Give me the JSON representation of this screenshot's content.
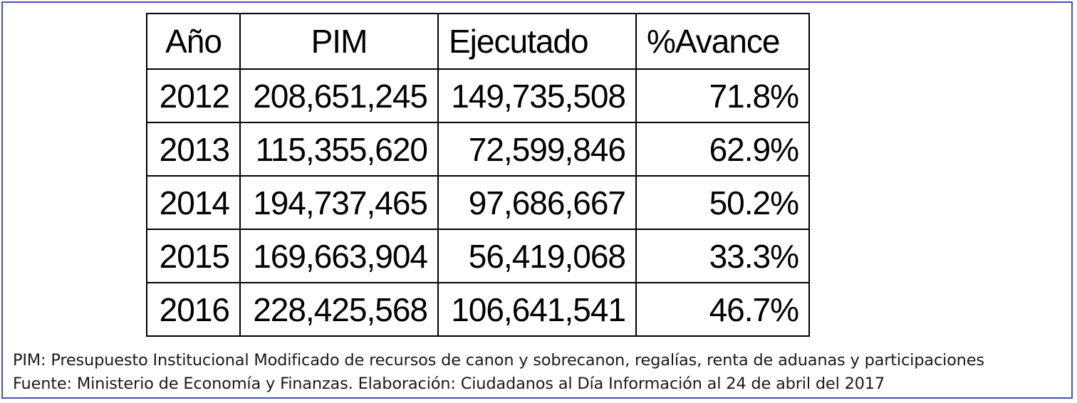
{
  "chart_data": {
    "type": "table",
    "columns": [
      "Año",
      "PIM",
      "Ejecutado",
      "%Avance"
    ],
    "rows": [
      {
        "anio": "2012",
        "pim": "208,651,245",
        "ejecutado": "149,735,508",
        "avance": "71.8%"
      },
      {
        "anio": "2013",
        "pim": "115,355,620",
        "ejecutado": "72,599,846",
        "avance": "62.9%"
      },
      {
        "anio": "2014",
        "pim": "194,737,465",
        "ejecutado": "97,686,667",
        "avance": "50.2%"
      },
      {
        "anio": "2015",
        "pim": "169,663,904",
        "ejecutado": "56,419,068",
        "avance": "33.3%"
      },
      {
        "anio": "2016",
        "pim": "228,425,568",
        "ejecutado": "106,641,541",
        "avance": "46.7%"
      }
    ]
  },
  "notes": {
    "definition": "PIM: Presupuesto Institucional Modificado de recursos de canon y sobrecanon, regalías, renta de aduanas y participaciones",
    "source": "Fuente: Ministerio de Economía y Finanzas. Elaboración: Ciudadanos al Día Información al 24 de abril del 2017"
  },
  "colors": {
    "frame_border": "#4a4fb5",
    "grid": "#000000",
    "text": "#000000"
  }
}
